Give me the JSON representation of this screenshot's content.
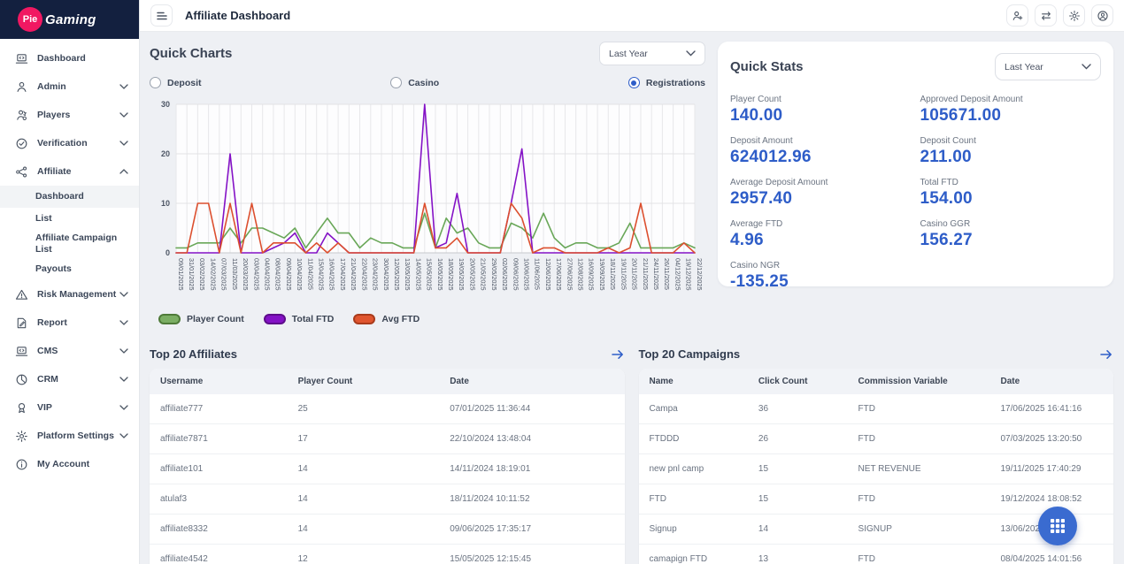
{
  "brand": {
    "logo_pie": "Pie",
    "logo_gaming": "Gaming"
  },
  "header": {
    "title": "Affiliate Dashboard",
    "menu_icon": "hamburger-icon",
    "action_icons": [
      "add-user-icon",
      "swap-arrows-icon",
      "gear-icon",
      "account-icon"
    ]
  },
  "sidebar": {
    "items": [
      {
        "label": "Dashboard",
        "icon": "dashboard-icon",
        "chevron": "none"
      },
      {
        "label": "Admin",
        "icon": "admin-icon",
        "chevron": "down"
      },
      {
        "label": "Players",
        "icon": "players-icon",
        "chevron": "down"
      },
      {
        "label": "Verification",
        "icon": "verification-icon",
        "chevron": "down"
      },
      {
        "label": "Affiliate",
        "icon": "affiliate-icon",
        "chevron": "up",
        "children": [
          {
            "label": "Dashboard",
            "active": true
          },
          {
            "label": "List",
            "active": false
          },
          {
            "label": "Affiliate Campaign List",
            "active": false
          },
          {
            "label": "Payouts",
            "active": false
          }
        ]
      },
      {
        "label": "Risk Management",
        "icon": "risk-icon",
        "chevron": "down"
      },
      {
        "label": "Report",
        "icon": "report-icon",
        "chevron": "down"
      },
      {
        "label": "CMS",
        "icon": "cms-icon",
        "chevron": "down"
      },
      {
        "label": "CRM",
        "icon": "crm-icon",
        "chevron": "down"
      },
      {
        "label": "VIP",
        "icon": "vip-icon",
        "chevron": "down"
      },
      {
        "label": "Platform Settings",
        "icon": "settings-icon",
        "chevron": "down"
      },
      {
        "label": "My Account",
        "icon": "info-icon",
        "chevron": "none"
      }
    ]
  },
  "quick_charts": {
    "title": "Quick Charts",
    "filter_value": "Last Year",
    "radios": [
      {
        "label": "Deposit",
        "checked": false
      },
      {
        "label": "Casino",
        "checked": false
      },
      {
        "label": "Registrations",
        "checked": true
      }
    ]
  },
  "chart_data": {
    "type": "line",
    "title": "",
    "xlabel": "",
    "ylabel": "",
    "ylim": [
      0,
      30
    ],
    "y_ticks": [
      0,
      10,
      20,
      30
    ],
    "grid": true,
    "legend_position": "bottom",
    "x": [
      "09/01/2025",
      "31/01/2025",
      "03/02/2025",
      "14/02/2025",
      "07/03/2025",
      "11/03/2025",
      "20/03/2025",
      "03/04/2025",
      "04/04/2025",
      "08/04/2025",
      "09/04/2025",
      "10/04/2025",
      "11/04/2025",
      "15/04/2025",
      "16/04/2025",
      "17/04/2025",
      "21/04/2025",
      "22/04/2025",
      "23/04/2025",
      "30/04/2025",
      "12/05/2025",
      "13/05/2025",
      "14/05/2025",
      "15/05/2025",
      "16/05/2025",
      "18/05/2025",
      "19/05/2025",
      "20/05/2025",
      "21/05/2025",
      "29/05/2025",
      "02/06/2025",
      "09/06/2025",
      "10/06/2025",
      "11/06/2025",
      "12/06/2025",
      "17/06/2025",
      "27/06/2025",
      "12/08/2025",
      "16/09/2025",
      "19/09/2025",
      "18/11/2025",
      "19/11/2025",
      "20/11/2025",
      "21/11/2025",
      "24/11/2025",
      "26/11/2025",
      "04/12/2025",
      "19/12/2025",
      "22/12/2025"
    ],
    "series": [
      {
        "name": "Player Count",
        "color": "#69a758",
        "values": [
          1,
          1,
          2,
          2,
          2,
          5,
          2,
          5,
          5,
          4,
          3,
          5,
          1,
          4,
          7,
          4,
          4,
          1,
          3,
          2,
          2,
          1,
          1,
          8,
          1,
          7,
          4,
          5,
          2,
          1,
          1,
          6,
          5,
          3,
          8,
          3,
          1,
          2,
          2,
          1,
          1,
          2,
          6,
          1,
          1,
          1,
          1,
          2,
          1
        ]
      },
      {
        "name": "Total FTD",
        "color": "#8412c6",
        "values": [
          0,
          0,
          0,
          0,
          0,
          20,
          0,
          0,
          0,
          1,
          2,
          4,
          0,
          0,
          4,
          2,
          0,
          0,
          0,
          0,
          0,
          0,
          0,
          30,
          1,
          2,
          12,
          0,
          0,
          0,
          0,
          10,
          21,
          0,
          0,
          0,
          0,
          0,
          0,
          0,
          0,
          0,
          0,
          0,
          0,
          0,
          0,
          0,
          0
        ]
      },
      {
        "name": "Avg FTD",
        "color": "#dc4f2e",
        "values": [
          0,
          0,
          10,
          10,
          0,
          10,
          0,
          10,
          0,
          2,
          2,
          2,
          0,
          2,
          0,
          2,
          0,
          0,
          0,
          0,
          0,
          0,
          0,
          10,
          1,
          1,
          3,
          0,
          0,
          0,
          0,
          10,
          7,
          0,
          1,
          1,
          0,
          0,
          0,
          0,
          1,
          0,
          1,
          10,
          0,
          0,
          0,
          2,
          0
        ]
      }
    ],
    "legend": [
      {
        "label": "Player Count",
        "fill": "#7bae63",
        "border": "#4e7a38"
      },
      {
        "label": "Total FTD",
        "fill": "#8412c6",
        "border": "#5e0d8b"
      },
      {
        "label": "Avg FTD",
        "fill": "#e0552f",
        "border": "#a93b1c"
      }
    ]
  },
  "quick_stats": {
    "title": "Quick Stats",
    "filter_value": "Last Year",
    "stats": [
      {
        "label": "Player Count",
        "value": "140.00"
      },
      {
        "label": "Approved Deposit Amount",
        "value": "105671.00"
      },
      {
        "label": "Deposit Amount",
        "value": "624012.96"
      },
      {
        "label": "Deposit Count",
        "value": "211.00"
      },
      {
        "label": "Average Deposit Amount",
        "value": "2957.40"
      },
      {
        "label": "Total FTD",
        "value": "154.00"
      },
      {
        "label": "Average FTD",
        "value": "4.96"
      },
      {
        "label": "Casino GGR",
        "value": "156.27"
      },
      {
        "label": "Casino NGR",
        "value": "-135.25"
      }
    ]
  },
  "top_affiliates": {
    "title": "Top 20 Affiliates",
    "columns": [
      "Username",
      "Player Count",
      "Date"
    ],
    "col_widths": [
      "29%",
      "32%",
      "39%"
    ],
    "rows": [
      [
        "affiliate777",
        "25",
        "07/01/2025 11:36:44"
      ],
      [
        "affiliate7871",
        "17",
        "22/10/2024 13:48:04"
      ],
      [
        "affiliate101",
        "14",
        "14/11/2024 18:19:01"
      ],
      [
        "atulaf3",
        "14",
        "18/11/2024 10:11:52"
      ],
      [
        "affiliate8332",
        "14",
        "09/06/2025 17:35:17"
      ],
      [
        "affiliate4542",
        "12",
        "15/05/2025 12:15:45"
      ]
    ]
  },
  "top_campaigns": {
    "title": "Top 20 Campaigns",
    "columns": [
      "Name",
      "Click Count",
      "Commission Variable",
      "Date"
    ],
    "col_widths": [
      "23%",
      "21%",
      "30%",
      "26%"
    ],
    "rows": [
      [
        "Campa",
        "36",
        "FTD",
        "17/06/2025 16:41:16"
      ],
      [
        "FTDDD",
        "26",
        "FTD",
        "07/03/2025 13:20:50"
      ],
      [
        "new pnl camp",
        "15",
        "NET REVENUE",
        "19/11/2025 17:40:29"
      ],
      [
        "FTD",
        "15",
        "FTD",
        "19/12/2024 18:08:52"
      ],
      [
        "Signup",
        "14",
        "SIGNUP",
        "13/06/2025 1"
      ],
      [
        "camapign FTD",
        "13",
        "FTD",
        "08/04/2025 14:01:56"
      ]
    ]
  },
  "fab": {
    "icon": "grid-icon"
  },
  "colors": {
    "accent_blue": "#2e5dc8",
    "brand_pink": "#f11862",
    "navy": "#13203f",
    "page_bg": "#eef0f4"
  }
}
